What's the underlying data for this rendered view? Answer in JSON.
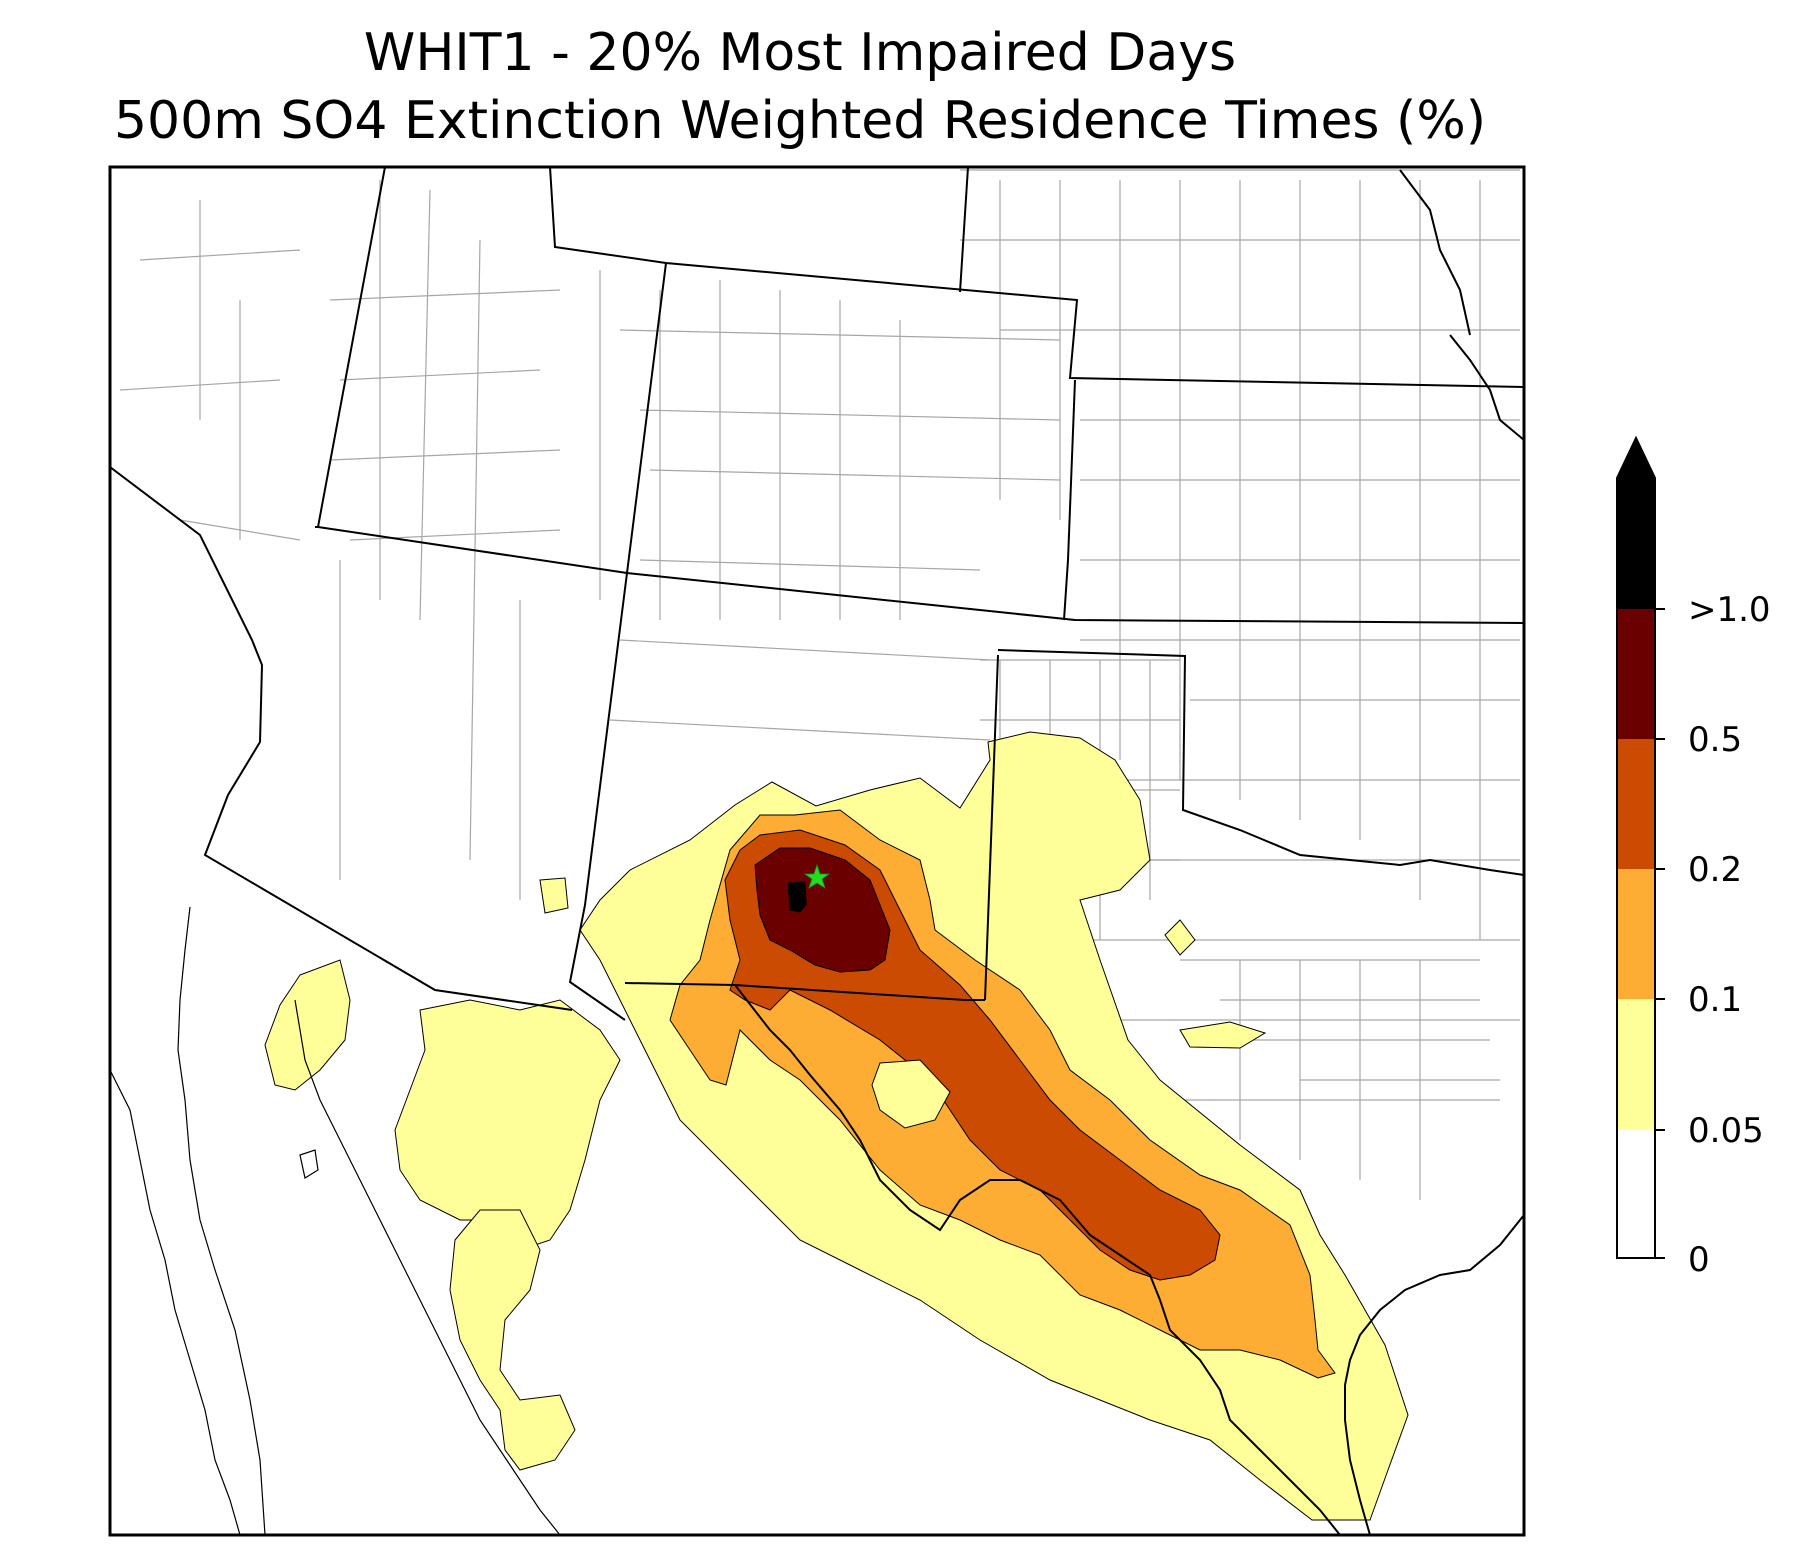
{
  "title_line1": "WHIT1 - 20% Most Impaired Days",
  "title_line2": "500m SO4 Extinction Weighted Residence Times (%)",
  "colorbar": {
    "labels": [
      "0",
      "0.05",
      "0.1",
      "0.2",
      "0.5",
      ">1.0"
    ],
    "colors": [
      "#ffffff",
      "#ffff99",
      "#fdad34",
      "#cc4b02",
      "#6a0000",
      "#000000"
    ],
    "extend": "max"
  },
  "colors": {
    "state_border": "#000000",
    "county_border": "#a6a6a6",
    "site_marker": "#22dd22"
  },
  "site_marker_icon": "star-icon"
}
